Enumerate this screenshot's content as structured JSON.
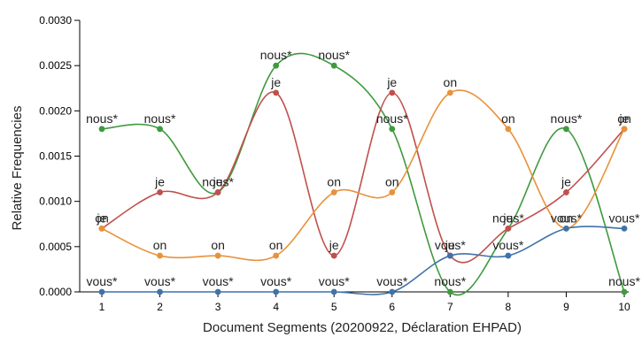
{
  "chart_data": {
    "type": "line",
    "xlabel": "Document Segments (20200922, Déclaration EHPAD)",
    "ylabel": "Relative Frequencies",
    "x": [
      "1",
      "2",
      "3",
      "4",
      "5",
      "6",
      "7",
      "8",
      "9",
      "10"
    ],
    "ylim": [
      0,
      0.003
    ],
    "yticks": [
      "0.0000",
      "0.0005",
      "0.0010",
      "0.0015",
      "0.0020",
      "0.0025",
      "0.0030"
    ],
    "grid": false,
    "series": [
      {
        "name": "nous*",
        "color": "#3f9a3f",
        "values": [
          0.0018,
          0.0018,
          0.0011,
          0.0025,
          0.0025,
          0.0018,
          0.0,
          0.0007,
          0.0018,
          0.0
        ]
      },
      {
        "name": "je",
        "color": "#c0504d",
        "values": [
          0.0007,
          0.0011,
          0.0011,
          0.0022,
          0.0004,
          0.0022,
          0.0004,
          0.0007,
          0.0011,
          0.0018
        ]
      },
      {
        "name": "on",
        "color": "#e8923a",
        "values": [
          0.0007,
          0.0004,
          0.0004,
          0.0004,
          0.0011,
          0.0011,
          0.0022,
          0.0018,
          0.0007,
          0.0018
        ]
      },
      {
        "name": "vous*",
        "color": "#3f72a8",
        "values": [
          0.0,
          0.0,
          0.0,
          0.0,
          0.0,
          0.0,
          0.0004,
          0.0004,
          0.0007,
          0.0007
        ]
      }
    ]
  }
}
